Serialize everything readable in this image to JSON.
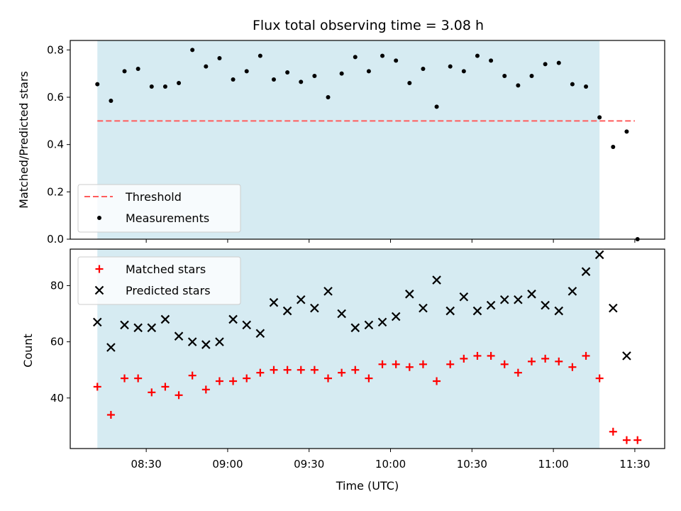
{
  "title": "Flux total observing time = 3.08 h",
  "colors": {
    "shade": "#add8e6",
    "threshold": "#ff5c5c",
    "measurement": "#000000",
    "matched": "#ff0000",
    "predicted": "#000000"
  },
  "chart_data": [
    {
      "type": "scatter",
      "ylabel": "Matched/Predicted stars",
      "xlabel": "",
      "ylim": [
        0,
        0.84
      ],
      "yticks": [
        0.0,
        0.2,
        0.4,
        0.6,
        0.8
      ],
      "ytick_labels": [
        "0.0",
        "0.2",
        "0.4",
        "0.6",
        "0.8"
      ],
      "shaded_interval": [
        "08:12",
        "11:17"
      ],
      "threshold": 0.5,
      "threshold_range": [
        "08:12",
        "11:30"
      ],
      "legend_position": "lower-left",
      "legend": [
        {
          "key": "threshold",
          "label": "Threshold"
        },
        {
          "key": "measurement",
          "label": "Measurements"
        }
      ],
      "series": [
        {
          "name": "Measurements",
          "x": [
            "08:12",
            "08:17",
            "08:22",
            "08:27",
            "08:32",
            "08:37",
            "08:42",
            "08:47",
            "08:52",
            "08:57",
            "09:02",
            "09:07",
            "09:12",
            "09:17",
            "09:22",
            "09:27",
            "09:32",
            "09:37",
            "09:42",
            "09:47",
            "09:52",
            "09:57",
            "10:02",
            "10:07",
            "10:12",
            "10:17",
            "10:22",
            "10:27",
            "10:32",
            "10:37",
            "10:42",
            "10:47",
            "10:52",
            "10:57",
            "11:02",
            "11:07",
            "11:12",
            "11:17",
            "11:22",
            "11:27",
            "11:31"
          ],
          "y": [
            0.655,
            0.585,
            0.71,
            0.72,
            0.645,
            0.645,
            0.66,
            0.8,
            0.73,
            0.765,
            0.675,
            0.71,
            0.775,
            0.675,
            0.705,
            0.665,
            0.69,
            0.6,
            0.7,
            0.77,
            0.71,
            0.775,
            0.755,
            0.66,
            0.72,
            0.56,
            0.73,
            0.71,
            0.775,
            0.755,
            0.69,
            0.65,
            0.69,
            0.74,
            0.745,
            0.655,
            0.645,
            0.515,
            0.39,
            0.455,
            0.0
          ]
        }
      ]
    },
    {
      "type": "scatter",
      "ylabel": "Count",
      "xlabel": "Time (UTC)",
      "ylim": [
        22,
        93
      ],
      "yticks": [
        40,
        60,
        80
      ],
      "ytick_labels": [
        "40",
        "60",
        "80"
      ],
      "x_range": [
        "08:02",
        "11:41"
      ],
      "xticks": [
        "08:30",
        "09:00",
        "09:30",
        "10:00",
        "10:30",
        "11:00",
        "11:30"
      ],
      "shaded_interval": [
        "08:12",
        "11:17"
      ],
      "legend_position": "upper-left",
      "legend": [
        {
          "key": "matched",
          "label": "Matched stars"
        },
        {
          "key": "predicted",
          "label": "Predicted stars"
        }
      ],
      "series": [
        {
          "name": "Matched stars",
          "x": [
            "08:12",
            "08:17",
            "08:22",
            "08:27",
            "08:32",
            "08:37",
            "08:42",
            "08:47",
            "08:52",
            "08:57",
            "09:02",
            "09:07",
            "09:12",
            "09:17",
            "09:22",
            "09:27",
            "09:32",
            "09:37",
            "09:42",
            "09:47",
            "09:52",
            "09:57",
            "10:02",
            "10:07",
            "10:12",
            "10:17",
            "10:22",
            "10:27",
            "10:32",
            "10:37",
            "10:42",
            "10:47",
            "10:52",
            "10:57",
            "11:02",
            "11:07",
            "11:12",
            "11:17",
            "11:22",
            "11:27",
            "11:31"
          ],
          "y": [
            44,
            34,
            47,
            47,
            42,
            44,
            41,
            48,
            43,
            46,
            46,
            47,
            49,
            50,
            50,
            50,
            50,
            47,
            49,
            50,
            47,
            52,
            52,
            51,
            52,
            46,
            52,
            54,
            55,
            55,
            52,
            49,
            53,
            54,
            53,
            51,
            55,
            47,
            28,
            25,
            25
          ]
        },
        {
          "name": "Predicted stars",
          "x": [
            "08:12",
            "08:17",
            "08:22",
            "08:27",
            "08:32",
            "08:37",
            "08:42",
            "08:47",
            "08:52",
            "08:57",
            "09:02",
            "09:07",
            "09:12",
            "09:17",
            "09:22",
            "09:27",
            "09:32",
            "09:37",
            "09:42",
            "09:47",
            "09:52",
            "09:57",
            "10:02",
            "10:07",
            "10:12",
            "10:17",
            "10:22",
            "10:27",
            "10:32",
            "10:37",
            "10:42",
            "10:47",
            "10:52",
            "10:57",
            "11:02",
            "11:07",
            "11:12",
            "11:17",
            "11:22",
            "11:27"
          ],
          "y": [
            67,
            58,
            66,
            65,
            65,
            68,
            62,
            60,
            59,
            60,
            68,
            66,
            63,
            74,
            71,
            75,
            72,
            78,
            70,
            65,
            66,
            67,
            69,
            77,
            72,
            82,
            71,
            76,
            71,
            73,
            75,
            75,
            77,
            73,
            71,
            78,
            85,
            91,
            72,
            55
          ]
        }
      ]
    }
  ]
}
